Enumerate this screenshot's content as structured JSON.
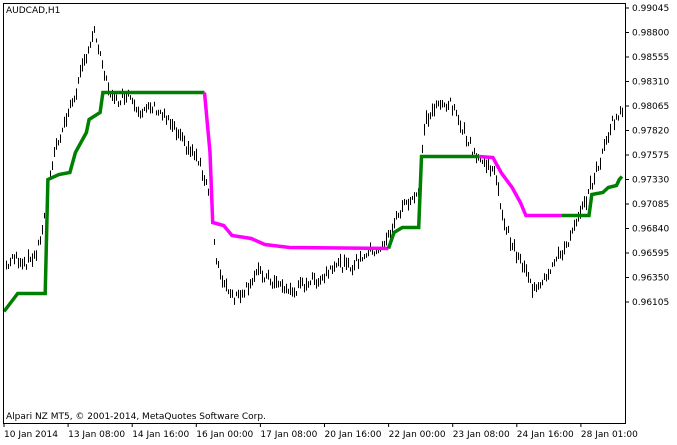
{
  "window": {
    "symbol_title": "AUDCAD,H1"
  },
  "footer": {
    "copyright": "Alpari NZ MT5, © 2001-2014, MetaQuotes Software Corp."
  },
  "colors": {
    "bars": "#000000",
    "up_line": "#008000",
    "down_line": "#ff00ff",
    "frame": "#000000",
    "background": "#ffffff"
  },
  "chart_data": {
    "type": "line",
    "title": "AUDCAD,H1",
    "y_ticks": [
      "0.99045",
      "0.98800",
      "0.98555",
      "0.98310",
      "0.98065",
      "0.97820",
      "0.97575",
      "0.97330",
      "0.97085",
      "0.96840",
      "0.96595",
      "0.96350",
      "0.96105"
    ],
    "x_ticks": [
      "10 Jan 2014",
      "13 Jan 08:00",
      "14 Jan 16:00",
      "16 Jan 00:00",
      "17 Jan 08:00",
      "20 Jan 16:00",
      "22 Jan 00:00",
      "23 Jan 08:00",
      "24 Jan 16:00",
      "28 Jan 01:00"
    ],
    "ylim": [
      0.9603,
      0.991
    ],
    "series": [
      {
        "name": "",
        "color": "#008000",
        "points": [
          [
            0,
            0.9601
          ],
          [
            0.5,
            0.9619
          ],
          [
            1.5,
            0.9619
          ],
          [
            1.6,
            0.9733
          ],
          [
            2.0,
            0.9738
          ],
          [
            2.4,
            0.974
          ],
          [
            2.6,
            0.976
          ],
          [
            3.0,
            0.978
          ],
          [
            3.1,
            0.9793
          ],
          [
            3.5,
            0.98
          ],
          [
            3.6,
            0.982
          ],
          [
            7.3,
            0.982
          ]
        ]
      },
      {
        "name": "",
        "color": "#ff00ff",
        "points": [
          [
            7.3,
            0.982
          ],
          [
            7.5,
            0.976
          ],
          [
            7.6,
            0.969
          ],
          [
            8.0,
            0.9687
          ],
          [
            8.3,
            0.9677
          ],
          [
            9.0,
            0.9674
          ],
          [
            9.5,
            0.9668
          ],
          [
            10.4,
            0.9665
          ],
          [
            14.0,
            0.9664
          ]
        ]
      },
      {
        "name": "",
        "color": "#008000",
        "points": [
          [
            14.0,
            0.9664
          ],
          [
            14.2,
            0.968
          ],
          [
            14.5,
            0.9685
          ],
          [
            15.1,
            0.9685
          ],
          [
            15.2,
            0.9756
          ],
          [
            17.3,
            0.9756
          ]
        ]
      },
      {
        "name": "",
        "color": "#ff00ff",
        "points": [
          [
            17.3,
            0.9756
          ],
          [
            17.8,
            0.9755
          ],
          [
            18.1,
            0.974
          ],
          [
            18.5,
            0.9725
          ],
          [
            18.8,
            0.971
          ],
          [
            19.0,
            0.9697
          ],
          [
            20.3,
            0.9697
          ]
        ]
      },
      {
        "name": "",
        "color": "#008000",
        "points": [
          [
            20.3,
            0.9697
          ],
          [
            21.3,
            0.9697
          ],
          [
            21.4,
            0.9718
          ],
          [
            21.8,
            0.972
          ],
          [
            22.0,
            0.9725
          ],
          [
            22.3,
            0.9727
          ],
          [
            22.4,
            0.9733
          ],
          [
            22.5,
            0.9736
          ]
        ]
      }
    ]
  }
}
